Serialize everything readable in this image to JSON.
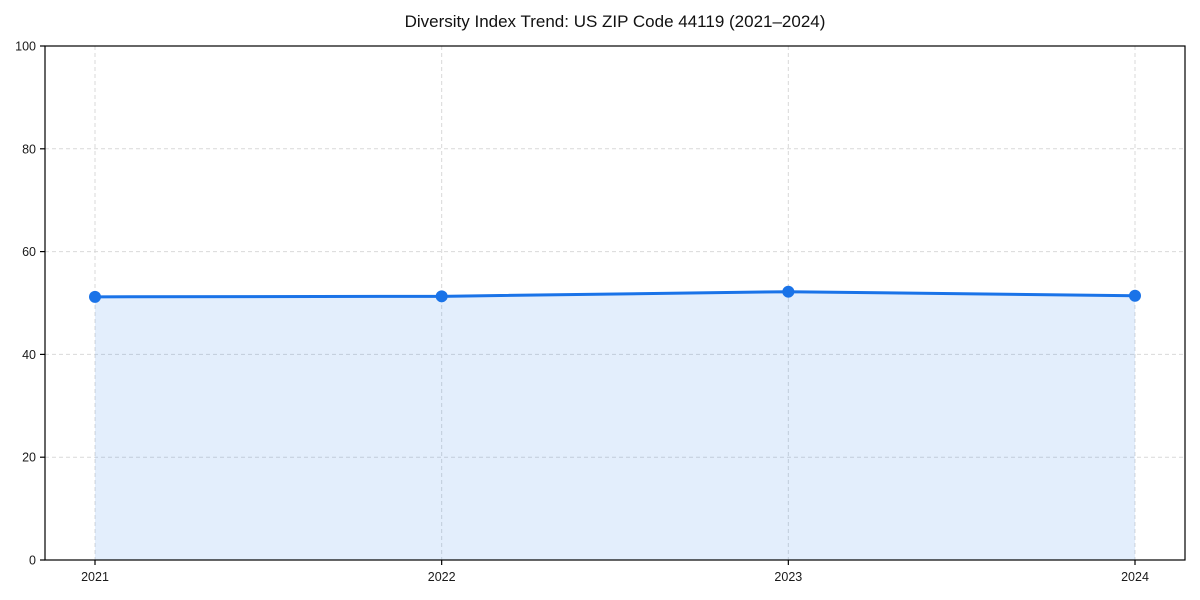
{
  "chart_data": {
    "type": "area",
    "title": "Diversity Index Trend: US ZIP Code 44119 (2021–2024)",
    "xlabel": "",
    "ylabel": "",
    "categories": [
      "2021",
      "2022",
      "2023",
      "2024"
    ],
    "series": [
      {
        "name": "Diversity Index",
        "values": [
          51.2,
          51.3,
          52.2,
          51.4
        ]
      }
    ],
    "ylim": [
      0,
      100
    ],
    "yticks": [
      0,
      20,
      40,
      60,
      80,
      100
    ],
    "grid": true,
    "grid_style": "dashed",
    "legend_position": "none",
    "colors": {
      "line": "#1a73e8",
      "marker": "#1a73e8",
      "area_fill": "rgba(26,115,232,0.12)",
      "grid": "#d9d9d9",
      "spine": "#000000",
      "tick_text": "#1a1a1a",
      "background": "#ffffff"
    }
  }
}
